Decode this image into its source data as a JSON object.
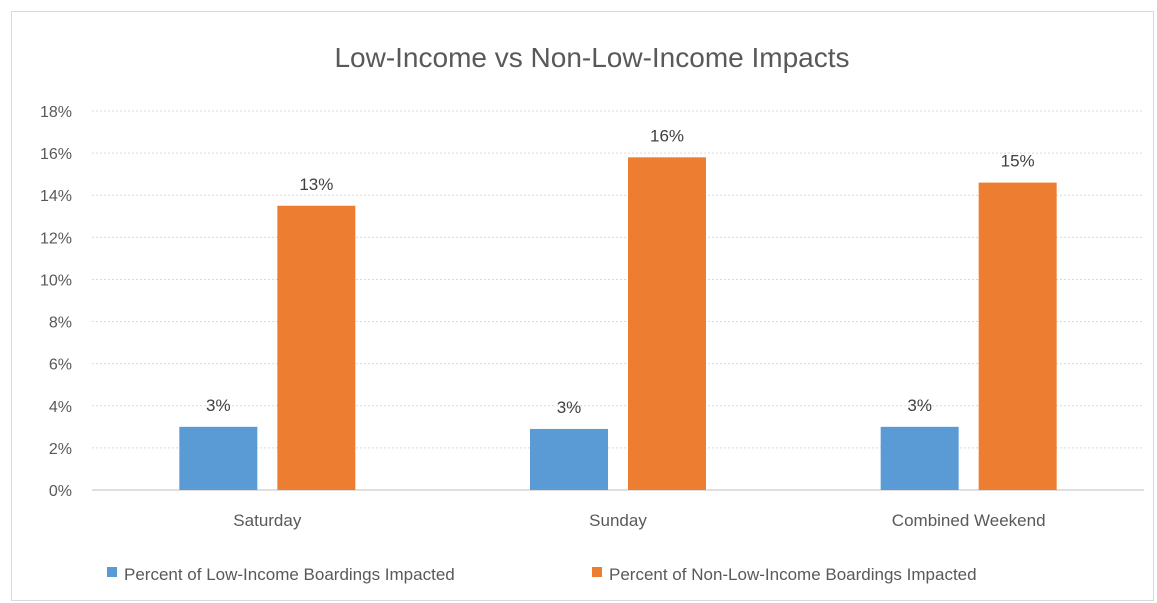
{
  "chart_data": {
    "type": "bar",
    "title": "Low-Income vs Non-Low-Income Impacts",
    "categories": [
      "Saturday",
      "Sunday",
      "Combined Weekend"
    ],
    "series": [
      {
        "name": "Percent of Low-Income Boardings Impacted",
        "color": "#5b9bd5",
        "values": [
          0.03,
          0.029,
          0.03
        ],
        "labels": [
          "3%",
          "3%",
          "3%"
        ]
      },
      {
        "name": "Percent of Non-Low-Income Boardings Impacted",
        "color": "#ed7d31",
        "values": [
          0.135,
          0.158,
          0.146
        ],
        "labels": [
          "13%",
          "16%",
          "15%"
        ]
      }
    ],
    "yticks": [
      "0%",
      "2%",
      "4%",
      "6%",
      "8%",
      "10%",
      "12%",
      "14%",
      "16%",
      "18%"
    ],
    "ylim": [
      0,
      0.18
    ],
    "grid": true,
    "legend_position": "bottom"
  }
}
